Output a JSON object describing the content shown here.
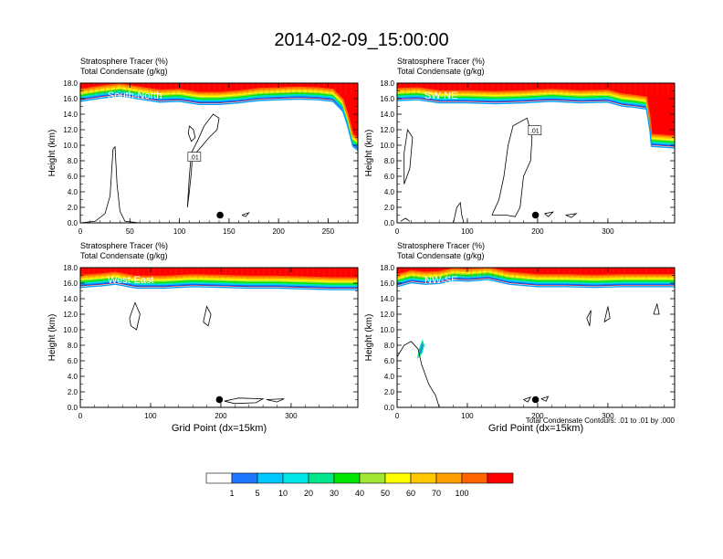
{
  "title": "2014-02-09_15:00:00",
  "colorbar": {
    "colors": [
      "#ffffff",
      "#1e78ff",
      "#00c8ff",
      "#00e6e6",
      "#00e68c",
      "#00e600",
      "#a0e632",
      "#ffff00",
      "#ffc800",
      "#ffa000",
      "#ff6400",
      "#ff0000"
    ],
    "labels": [
      "1",
      "5",
      "10",
      "20",
      "30",
      "40",
      "50",
      "60",
      "70",
      "100"
    ]
  },
  "footnote": "Total Condensate Contours: .01 to .01 by .000",
  "chart_data": [
    {
      "type": "contour",
      "title_line1": "Stratosphere Tracer   (%)",
      "title_line2": "Total Condensate   (g/kg)",
      "panel_label": "South-North",
      "ylabel": "Height (km)",
      "xlabel": "",
      "xlim": [
        0,
        280
      ],
      "ylim": [
        0,
        18
      ],
      "xticks": [
        0,
        50,
        100,
        150,
        200,
        250
      ],
      "yticks": [
        0,
        2,
        4,
        6,
        8,
        10,
        12,
        14,
        16,
        18
      ],
      "ytick_labels": [
        "0.0",
        "2.0",
        "4.0",
        "6.0",
        "8.0",
        "10.0",
        "12.0",
        "14.0",
        "16.0",
        "18.0"
      ],
      "grid": false,
      "contour_label": ".01",
      "contour_label_pos": [
        115,
        8.4
      ],
      "marker": [
        141,
        1.0
      ],
      "tropopause": [
        [
          0,
          15.8
        ],
        [
          20,
          16.2
        ],
        [
          40,
          16.5
        ],
        [
          60,
          16.1
        ],
        [
          80,
          15.7
        ],
        [
          100,
          15.8
        ],
        [
          120,
          15.4
        ],
        [
          140,
          15.4
        ],
        [
          160,
          15.6
        ],
        [
          180,
          15.9
        ],
        [
          200,
          16.0
        ],
        [
          220,
          16.1
        ],
        [
          240,
          16.0
        ],
        [
          255,
          15.8
        ],
        [
          265,
          14.5
        ],
        [
          270,
          12.5
        ],
        [
          275,
          10.0
        ],
        [
          280,
          9.5
        ]
      ],
      "contours": [
        [
          [
            0,
            0
          ],
          [
            15,
            0.2
          ],
          [
            25,
            1.2
          ],
          [
            30,
            3.5
          ],
          [
            33,
            9.5
          ],
          [
            35,
            9.8
          ],
          [
            37,
            5.0
          ],
          [
            40,
            1.5
          ],
          [
            45,
            0.2
          ],
          [
            60,
            0
          ]
        ],
        [
          [
            108,
            2.0
          ],
          [
            110,
            4.0
          ],
          [
            112,
            6.5
          ],
          [
            113,
            8.5
          ],
          [
            120,
            9.5
          ],
          [
            130,
            11.0
          ],
          [
            138,
            12.0
          ],
          [
            140,
            13.5
          ],
          [
            134,
            14.0
          ],
          [
            125,
            12.5
          ],
          [
            118,
            10.5
          ],
          [
            112,
            9.0
          ],
          [
            110,
            6.0
          ],
          [
            108,
            2.0
          ]
        ],
        [
          [
            110,
            12.5
          ],
          [
            114,
            12.0
          ],
          [
            116,
            11.0
          ],
          [
            112,
            10.5
          ],
          [
            109,
            11.5
          ],
          [
            110,
            12.5
          ]
        ],
        [
          [
            163,
            1.0
          ],
          [
            170,
            1.3
          ],
          [
            167,
            0.8
          ],
          [
            163,
            1.0
          ]
        ]
      ]
    },
    {
      "type": "contour",
      "title_line1": "Stratosphere Tracer   (%)",
      "title_line2": "Total Condensate   (g/kg)",
      "panel_label": "SW-NE",
      "ylabel": "Height (km)",
      "xlabel": "",
      "xlim": [
        0,
        395
      ],
      "ylim": [
        0,
        18
      ],
      "xticks": [
        0,
        100,
        200,
        300
      ],
      "yticks": [
        0,
        2,
        4,
        6,
        8,
        10,
        12,
        14,
        16,
        18
      ],
      "ytick_labels": [
        "0.0",
        "2.0",
        "4.0",
        "6.0",
        "8.0",
        "10.0",
        "12.0",
        "14.0",
        "16.0",
        "18.0"
      ],
      "grid": false,
      "contour_label": ".01",
      "contour_label_pos": [
        196,
        11.8
      ],
      "marker": [
        197,
        1.0
      ],
      "tropopause": [
        [
          0,
          15.9
        ],
        [
          30,
          16.0
        ],
        [
          60,
          15.6
        ],
        [
          100,
          15.6
        ],
        [
          140,
          15.5
        ],
        [
          180,
          15.6
        ],
        [
          220,
          15.8
        ],
        [
          260,
          15.6
        ],
        [
          300,
          15.7
        ],
        [
          320,
          15.2
        ],
        [
          340,
          15.0
        ],
        [
          355,
          14.8
        ],
        [
          360,
          12.0
        ],
        [
          362,
          10.0
        ],
        [
          395,
          9.8
        ]
      ],
      "contours": [
        [
          [
            5,
            0.2
          ],
          [
            12,
            0.6
          ],
          [
            18,
            0.2
          ]
        ],
        [
          [
            80,
            0
          ],
          [
            85,
            2.0
          ],
          [
            90,
            2.6
          ],
          [
            92,
            1.0
          ],
          [
            95,
            0
          ]
        ],
        [
          [
            135,
            1.0
          ],
          [
            145,
            3.0
          ],
          [
            152,
            6.0
          ],
          [
            158,
            10.0
          ],
          [
            165,
            12.5
          ],
          [
            185,
            13.5
          ],
          [
            192,
            11.0
          ],
          [
            190,
            8.0
          ],
          [
            180,
            6.0
          ],
          [
            175,
            2.0
          ],
          [
            168,
            0.8
          ],
          [
            155,
            1.0
          ],
          [
            135,
            1.0
          ]
        ],
        [
          [
            10,
            5.0
          ],
          [
            18,
            7.0
          ],
          [
            22,
            11.0
          ],
          [
            15,
            12.0
          ],
          [
            10,
            9.0
          ],
          [
            10,
            5.0
          ]
        ],
        [
          [
            210,
            1.2
          ],
          [
            222,
            1.4
          ],
          [
            215,
            0.8
          ],
          [
            210,
            1.2
          ]
        ],
        [
          [
            240,
            1.0
          ],
          [
            255,
            1.2
          ],
          [
            248,
            0.7
          ],
          [
            240,
            1.0
          ]
        ]
      ]
    },
    {
      "type": "contour",
      "title_line1": "Stratosphere Tracer   (%)",
      "title_line2": "Total Condensate   (g/kg)",
      "panel_label": "West-East",
      "ylabel": "Height (km)",
      "xlabel": "Grid Point (dx=15km)",
      "xlim": [
        0,
        395
      ],
      "ylim": [
        0,
        18
      ],
      "xticks": [
        0,
        100,
        200,
        300
      ],
      "yticks": [
        0,
        2,
        4,
        6,
        8,
        10,
        12,
        14,
        16,
        18
      ],
      "ytick_labels": [
        "0.0",
        "2.0",
        "4.0",
        "6.0",
        "8.0",
        "10.0",
        "12.0",
        "14.0",
        "16.0",
        "18.0"
      ],
      "grid": false,
      "contour_label": "",
      "contour_label_pos": null,
      "marker": [
        198,
        1.0
      ],
      "tropopause": [
        [
          0,
          15.6
        ],
        [
          30,
          15.8
        ],
        [
          50,
          16.0
        ],
        [
          80,
          15.5
        ],
        [
          120,
          15.5
        ],
        [
          160,
          15.7
        ],
        [
          200,
          15.6
        ],
        [
          240,
          15.5
        ],
        [
          280,
          15.5
        ],
        [
          320,
          15.4
        ],
        [
          360,
          15.3
        ],
        [
          395,
          15.3
        ]
      ],
      "contours": [
        [
          [
            70,
            11.5
          ],
          [
            78,
            13.5
          ],
          [
            85,
            12.0
          ],
          [
            80,
            10.0
          ],
          [
            72,
            10.5
          ],
          [
            70,
            11.5
          ]
        ],
        [
          [
            175,
            11.0
          ],
          [
            180,
            13.0
          ],
          [
            186,
            12.0
          ],
          [
            182,
            10.5
          ],
          [
            175,
            11.0
          ]
        ],
        [
          [
            205,
            0.8
          ],
          [
            225,
            1.2
          ],
          [
            260,
            1.1
          ],
          [
            250,
            0.6
          ],
          [
            220,
            0.5
          ],
          [
            205,
            0.8
          ]
        ],
        [
          [
            265,
            1.0
          ],
          [
            290,
            1.1
          ],
          [
            280,
            0.7
          ],
          [
            265,
            1.0
          ]
        ]
      ]
    },
    {
      "type": "contour",
      "title_line1": "Stratosphere Tracer   (%)",
      "title_line2": "Total Condensate   (g/kg)",
      "panel_label": "NW-SE",
      "ylabel": "Height (km)",
      "xlabel": "Grid Point (dx=15km)",
      "xlim": [
        0,
        395
      ],
      "ylim": [
        0,
        18
      ],
      "xticks": [
        0,
        100,
        200,
        300
      ],
      "yticks": [
        0,
        2,
        4,
        6,
        8,
        10,
        12,
        14,
        16,
        18
      ],
      "ytick_labels": [
        "0.0",
        "2.0",
        "4.0",
        "6.0",
        "8.0",
        "10.0",
        "12.0",
        "14.0",
        "16.0",
        "18.0"
      ],
      "grid": false,
      "contour_label": "",
      "contour_label_pos": null,
      "marker": [
        197,
        1.0
      ],
      "tropopause": [
        [
          0,
          15.7
        ],
        [
          20,
          16.2
        ],
        [
          40,
          16.0
        ],
        [
          60,
          16.1
        ],
        [
          80,
          16.5
        ],
        [
          100,
          16.4
        ],
        [
          130,
          16.6
        ],
        [
          160,
          16.0
        ],
        [
          200,
          15.7
        ],
        [
          240,
          15.7
        ],
        [
          280,
          15.6
        ],
        [
          320,
          15.7
        ],
        [
          395,
          15.7
        ]
      ],
      "contours": [
        [
          [
            0,
            6.5
          ],
          [
            10,
            8.0
          ],
          [
            20,
            8.5
          ],
          [
            30,
            7.5
          ],
          [
            35,
            5.5
          ],
          [
            45,
            3.0
          ],
          [
            55,
            1.5
          ],
          [
            60,
            0
          ]
        ],
        [
          [
            270,
            11.5
          ],
          [
            276,
            12.5
          ],
          [
            274,
            10.5
          ],
          [
            270,
            11.5
          ]
        ],
        [
          [
            295,
            11.0
          ],
          [
            300,
            13.0
          ],
          [
            303,
            11.5
          ],
          [
            295,
            11.0
          ]
        ],
        [
          [
            365,
            12.0
          ],
          [
            370,
            13.3
          ],
          [
            373,
            12.0
          ],
          [
            365,
            12.0
          ]
        ],
        [
          [
            180,
            1.0
          ],
          [
            190,
            1.3
          ],
          [
            186,
            0.7
          ],
          [
            180,
            1.0
          ]
        ],
        [
          [
            205,
            1.1
          ],
          [
            215,
            1.4
          ],
          [
            212,
            0.8
          ],
          [
            205,
            1.1
          ]
        ]
      ],
      "blob": [
        [
          30,
          6.5
        ],
        [
          35,
          7.0
        ],
        [
          38,
          8.0
        ],
        [
          36,
          8.5
        ],
        [
          32,
          7.5
        ],
        [
          30,
          6.5
        ]
      ]
    }
  ]
}
